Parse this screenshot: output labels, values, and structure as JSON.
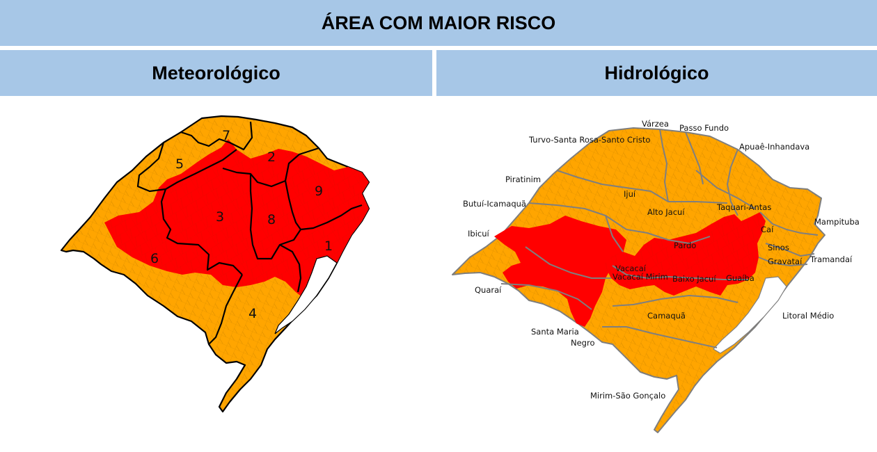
{
  "title": "ÁREA COM MAIOR RISCO",
  "panels": [
    {
      "title": "Meteorológico"
    },
    {
      "title": "Hidrológico"
    }
  ],
  "colors": {
    "header_bg": "#a7c7e7",
    "moderate_risk": "#ffa500",
    "high_risk": "#ff0000",
    "lagoon": "#ffffff",
    "region_border": "#000000",
    "basin_border": "#7f7f7f"
  },
  "meteorological_regions": [
    "1",
    "2",
    "3",
    "4",
    "5",
    "6",
    "7",
    "8",
    "9"
  ],
  "hydrological_basins": [
    "Várzea",
    "Passo Fundo",
    "Turvo-Santa Rosa-Santo Cristo",
    "Apuaê-Inhandava",
    "Piratinim",
    "Ijuí",
    "Butuí-Icamaquã",
    "Alto Jacuí",
    "Taquari-Antas",
    "Mampituba",
    "Ibicuí",
    "Caí",
    "Pardo",
    "Sinos",
    "Vacacaí",
    "Vacacaí Mirim",
    "Gravataí",
    "Tramandaí",
    "Baixo Jacuí",
    "Guaíba",
    "Quaraí",
    "Camaquã",
    "Litoral Médio",
    "Santa Maria",
    "Negro",
    "Mirim-São Gonçalo"
  ]
}
